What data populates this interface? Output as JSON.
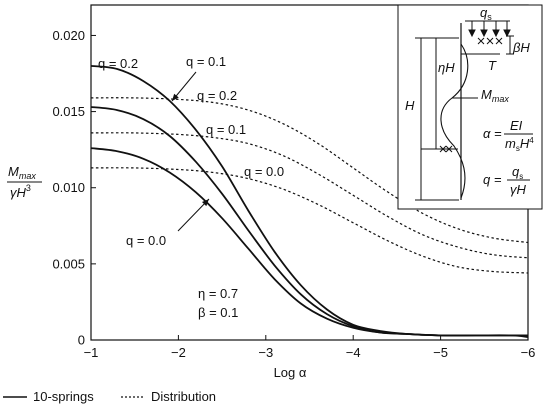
{
  "chart_data": {
    "type": "line",
    "xlabel": "Log α",
    "ylabel": {
      "numerator": "M",
      "numerator_sub": "max",
      "denominator": "γH",
      "denominator_sup": "3"
    },
    "xlim": [
      -1,
      -6
    ],
    "ylim": [
      0,
      0.022
    ],
    "x_ticks": [
      {
        "value": -1,
        "label": "−1"
      },
      {
        "value": -2,
        "label": "−2"
      },
      {
        "value": -3,
        "label": "−3"
      },
      {
        "value": -4,
        "label": "−4"
      },
      {
        "value": -5,
        "label": "−5"
      },
      {
        "value": -6,
        "label": "−6"
      }
    ],
    "y_ticks": [
      {
        "value": 0,
        "label": "0"
      },
      {
        "value": 0.005,
        "label": "0.005"
      },
      {
        "value": 0.01,
        "label": "0.010"
      },
      {
        "value": 0.015,
        "label": "0.015"
      },
      {
        "value": 0.02,
        "label": "0.020"
      }
    ],
    "legend": {
      "placement": "bottom-left",
      "items": [
        {
          "label": "10-springs",
          "style": "solid"
        },
        {
          "label": "Distribution",
          "style": "dotted"
        }
      ]
    },
    "parameters_text": [
      "η = 0.7",
      "β = 0.1"
    ],
    "series": [
      {
        "style": "solid",
        "q": "0.2",
        "x": [
          -1.0,
          -1.3,
          -1.6,
          -1.9,
          -2.2,
          -2.5,
          -2.8,
          -3.1,
          -3.4,
          -3.7,
          -4.0,
          -4.3,
          -4.6,
          -5.0,
          -5.4,
          -5.8,
          -6.0
        ],
        "y": [
          0.018,
          0.0178,
          0.017,
          0.0157,
          0.0138,
          0.0114,
          0.0085,
          0.0058,
          0.0036,
          0.002,
          0.001,
          0.0006,
          0.0004,
          0.0003,
          0.0003,
          0.0003,
          0.0003
        ]
      },
      {
        "style": "solid",
        "q": "0.1",
        "x": [
          -1.0,
          -1.3,
          -1.6,
          -1.9,
          -2.2,
          -2.5,
          -2.8,
          -3.1,
          -3.4,
          -3.7,
          -4.0,
          -4.3,
          -4.6,
          -5.0,
          -5.4,
          -5.8,
          -6.0
        ],
        "y": [
          0.0153,
          0.0151,
          0.0145,
          0.0134,
          0.0117,
          0.0096,
          0.0072,
          0.0049,
          0.003,
          0.0017,
          0.0009,
          0.0005,
          0.0004,
          0.0003,
          0.0003,
          0.0003,
          0.0003
        ]
      },
      {
        "style": "solid",
        "q": "0.0",
        "x": [
          -1.0,
          -1.3,
          -1.6,
          -1.9,
          -2.2,
          -2.5,
          -2.8,
          -3.1,
          -3.4,
          -3.7,
          -4.0,
          -4.3,
          -4.6,
          -5.0,
          -5.4,
          -5.8,
          -6.0
        ],
        "y": [
          0.0126,
          0.0124,
          0.0119,
          0.011,
          0.0097,
          0.008,
          0.006,
          0.004,
          0.0024,
          0.0014,
          0.0008,
          0.0005,
          0.0004,
          0.0003,
          0.0003,
          0.0003,
          0.0002
        ]
      },
      {
        "style": "dotted",
        "q": "0.2",
        "x": [
          -1.0,
          -1.5,
          -2.0,
          -2.4,
          -2.8,
          -3.2,
          -3.6,
          -4.0,
          -4.4,
          -4.8,
          -5.2,
          -5.6,
          -6.0
        ],
        "y": [
          0.0159,
          0.0159,
          0.0158,
          0.0156,
          0.0151,
          0.0142,
          0.0129,
          0.0113,
          0.0097,
          0.0083,
          0.0073,
          0.0067,
          0.0064
        ]
      },
      {
        "style": "dotted",
        "q": "0.1",
        "x": [
          -1.0,
          -1.5,
          -2.0,
          -2.4,
          -2.8,
          -3.2,
          -3.6,
          -4.0,
          -4.4,
          -4.8,
          -5.2,
          -5.6,
          -6.0
        ],
        "y": [
          0.0136,
          0.0136,
          0.0135,
          0.0133,
          0.0129,
          0.0121,
          0.0109,
          0.0095,
          0.0081,
          0.0069,
          0.0061,
          0.0056,
          0.0054
        ]
      },
      {
        "style": "dotted",
        "q": "0.0",
        "x": [
          -1.0,
          -1.5,
          -2.0,
          -2.4,
          -2.8,
          -3.2,
          -3.6,
          -4.0,
          -4.4,
          -4.8,
          -5.2,
          -5.6,
          -6.0
        ],
        "y": [
          0.0113,
          0.0113,
          0.0112,
          0.011,
          0.0106,
          0.0099,
          0.0089,
          0.0077,
          0.0065,
          0.0055,
          0.0048,
          0.0045,
          0.0044
        ]
      }
    ],
    "annotations": [
      {
        "text": "q = 0.2",
        "series": 0
      },
      {
        "text": "q = 0.1",
        "series": 1
      },
      {
        "text": "q = 0.0",
        "series": 2
      },
      {
        "text": "q = 0.2",
        "series": 3
      },
      {
        "text": "q = 0.1",
        "series": 4
      },
      {
        "text": "q = 0.0",
        "series": 5
      }
    ],
    "inset": {
      "labels": {
        "qs": "q",
        "qs_sub": "s",
        "betaH": "βH",
        "etaH": "ηH",
        "H": "H",
        "T": "T",
        "Mmax": "M",
        "Mmax_sub": "max"
      },
      "formula_alpha": {
        "lhs": "α =",
        "num": "EI",
        "den": "m",
        "den_sub": "s",
        "den_rest": "H",
        "den_sup": "4"
      },
      "formula_q": {
        "lhs": "q =",
        "num": "q",
        "num_sub": "s",
        "den": "γH"
      }
    }
  }
}
